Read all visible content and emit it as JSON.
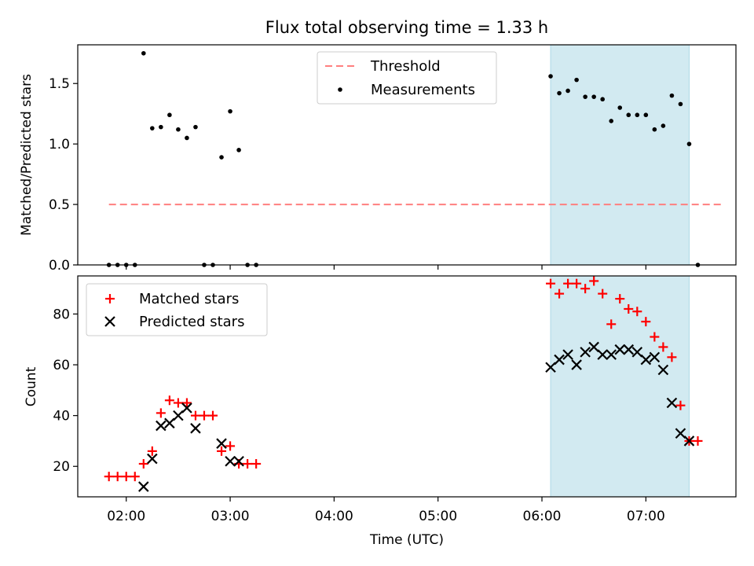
{
  "chart_data": {
    "title": "Flux total observing time = 1.33 h",
    "xlabel": "Time (UTC)",
    "x_ticks": [
      "02:00",
      "03:00",
      "04:00",
      "05:00",
      "06:00",
      "07:00"
    ],
    "x_range": [
      "01:32",
      "07:52"
    ],
    "shaded_region": {
      "x": [
        "06:05",
        "07:25"
      ],
      "color": "#add8e6"
    },
    "panels": [
      {
        "type": "scatter",
        "ylabel": "Matched/Predicted stars",
        "ylim": [
          0,
          1.82
        ],
        "y_ticks": [
          "0.0",
          "0.5",
          "1.0",
          "1.5"
        ],
        "legend_position": "upper center",
        "threshold": {
          "name": "Threshold",
          "value": 0.5,
          "x_range": [
            "01:50",
            "07:45"
          ],
          "color": "#ff7f7f",
          "style": "dashed"
        },
        "series": [
          {
            "name": "Measurements",
            "marker": "dot",
            "color": "#000000",
            "x": [
              "01:50",
              "01:55",
              "02:00",
              "02:05",
              "02:10",
              "02:15",
              "02:20",
              "02:25",
              "02:30",
              "02:35",
              "02:40",
              "02:45",
              "02:50",
              "02:55",
              "03:00",
              "03:05",
              "03:10",
              "03:15",
              "06:05",
              "06:10",
              "06:15",
              "06:20",
              "06:25",
              "06:30",
              "06:35",
              "06:40",
              "06:45",
              "06:50",
              "06:55",
              "07:00",
              "07:05",
              "07:10",
              "07:15",
              "07:20",
              "07:25",
              "07:30"
            ],
            "y": [
              0,
              0,
              0,
              0,
              1.75,
              1.13,
              1.14,
              1.24,
              1.12,
              1.05,
              1.14,
              0,
              0,
              0.89,
              1.27,
              0.95,
              0,
              0,
              1.56,
              1.42,
              1.44,
              1.53,
              1.39,
              1.39,
              1.37,
              1.19,
              1.3,
              1.24,
              1.24,
              1.24,
              1.12,
              1.15,
              1.4,
              1.33,
              1.0,
              0
            ]
          }
        ]
      },
      {
        "type": "scatter",
        "ylabel": "Count",
        "ylim": [
          8,
          95
        ],
        "y_ticks": [
          "20",
          "40",
          "60",
          "80"
        ],
        "legend_position": "upper left",
        "series": [
          {
            "name": "Matched stars",
            "marker": "plus",
            "color": "#ff0000",
            "x": [
              "01:50",
              "01:55",
              "02:00",
              "02:05",
              "02:10",
              "02:15",
              "02:20",
              "02:25",
              "02:30",
              "02:35",
              "02:40",
              "02:45",
              "02:50",
              "02:55",
              "03:00",
              "03:05",
              "03:10",
              "03:15",
              "06:05",
              "06:10",
              "06:15",
              "06:20",
              "06:25",
              "06:30",
              "06:35",
              "06:40",
              "06:45",
              "06:50",
              "06:55",
              "07:00",
              "07:05",
              "07:10",
              "07:15",
              "07:20",
              "07:25",
              "07:30"
            ],
            "y": [
              16,
              16,
              16,
              16,
              21,
              26,
              41,
              46,
              45,
              45,
              40,
              40,
              40,
              26,
              28,
              21,
              21,
              21,
              92,
              88,
              92,
              92,
              90,
              93,
              88,
              76,
              86,
              82,
              81,
              77,
              71,
              67,
              63,
              44,
              30,
              30
            ]
          },
          {
            "name": "Predicted stars",
            "marker": "x",
            "color": "#000000",
            "x": [
              "02:10",
              "02:15",
              "02:20",
              "02:25",
              "02:30",
              "02:35",
              "02:40",
              "02:55",
              "03:00",
              "03:05",
              "06:05",
              "06:10",
              "06:15",
              "06:20",
              "06:25",
              "06:30",
              "06:35",
              "06:40",
              "06:45",
              "06:50",
              "06:55",
              "07:00",
              "07:05",
              "07:10",
              "07:15",
              "07:20",
              "07:25"
            ],
            "y": [
              12,
              23,
              36,
              37,
              40,
              43,
              35,
              29,
              22,
              22,
              59,
              62,
              64,
              60,
              65,
              67,
              64,
              64,
              66,
              66,
              65,
              62,
              63,
              58,
              45,
              33,
              30
            ]
          }
        ]
      }
    ]
  }
}
